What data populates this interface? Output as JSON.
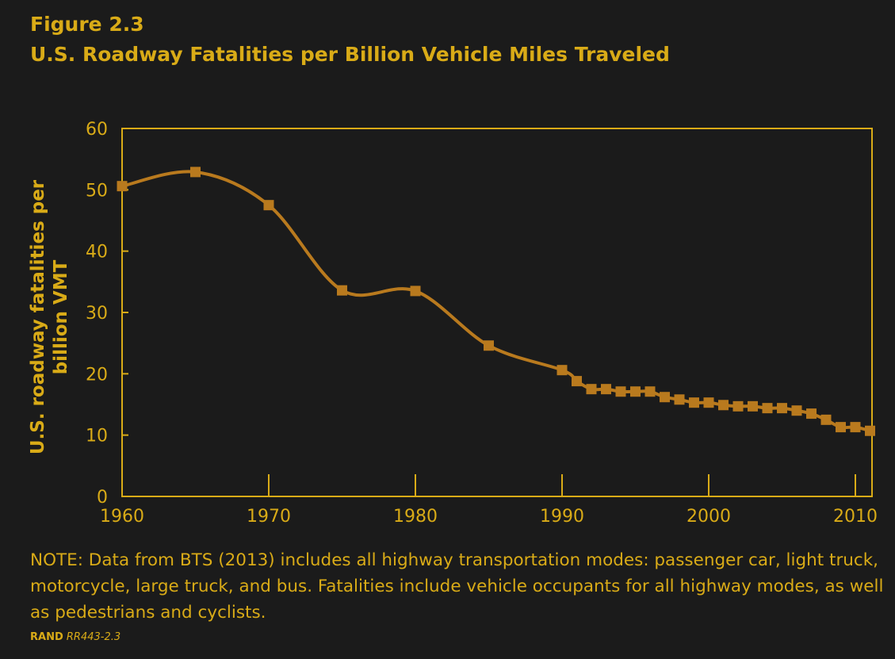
{
  "figure_label": "Figure 2.3",
  "title": "U.S. Roadway Fatalities per Billion Vehicle Miles Traveled",
  "note": "NOTE: Data from BTS (2013) includes all highway transportation modes: passenger car, light truck, motorcycle, large truck, and bus. Fatalities include vehicle occupants for all highway modes, as well as pedestrians and cyclists.",
  "credit": {
    "org": "RAND",
    "id": "RR443-2.3"
  },
  "colors": {
    "background": "#1b1b1b",
    "text": "#d9ab17",
    "axis": "#d9ab17",
    "series": "#b97a1e"
  },
  "chart_data": {
    "type": "line",
    "title": "U.S. Roadway Fatalities per Billion Vehicle Miles Traveled",
    "xlabel": "",
    "ylabel": "U.S. roadway fatalities per billion VMT",
    "ylabel_lines": [
      "U.S. roadway fatalities per",
      "billion VMT"
    ],
    "xlim": [
      1960,
      2011
    ],
    "ylim": [
      0,
      60
    ],
    "xticks": [
      1960,
      1970,
      1980,
      1990,
      2000,
      2010
    ],
    "yticks": [
      0,
      10,
      20,
      30,
      40,
      50,
      60
    ],
    "grid": false,
    "series": [
      {
        "name": "Fatalities per billion VMT",
        "marker": "square",
        "smooth": true,
        "x": [
          1960,
          1965,
          1970,
          1975,
          1980,
          1985,
          1990,
          1991,
          1992,
          1993,
          1994,
          1995,
          1996,
          1997,
          1998,
          1999,
          2000,
          2001,
          2002,
          2003,
          2004,
          2005,
          2006,
          2007,
          2008,
          2009,
          2010,
          2011
        ],
        "values": [
          50.6,
          52.9,
          47.5,
          33.6,
          33.5,
          24.6,
          20.6,
          18.8,
          17.5,
          17.5,
          17.1,
          17.1,
          17.1,
          16.2,
          15.8,
          15.3,
          15.3,
          14.9,
          14.7,
          14.7,
          14.4,
          14.4,
          14.0,
          13.5,
          12.5,
          11.3,
          11.3,
          10.7
        ]
      }
    ]
  }
}
